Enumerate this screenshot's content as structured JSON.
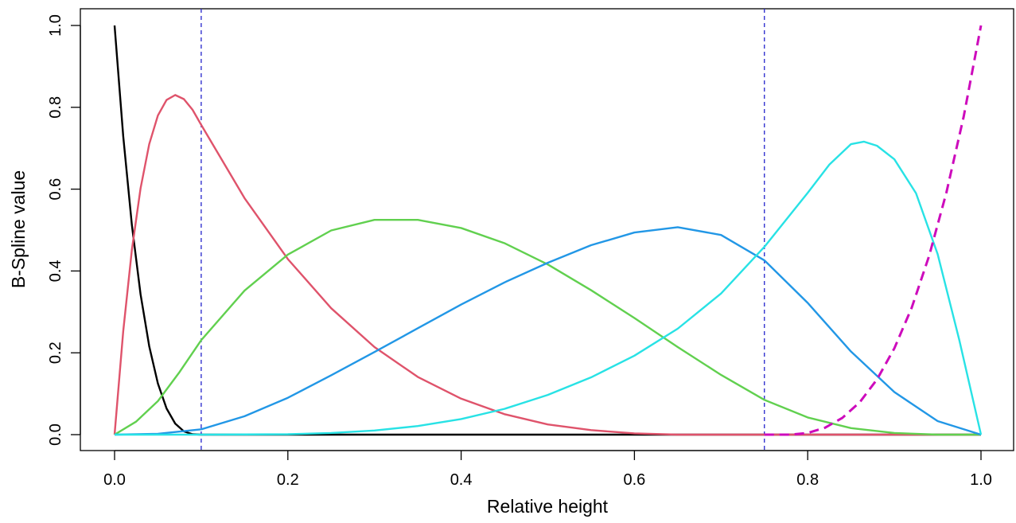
{
  "chart_data": {
    "type": "line",
    "title": "",
    "xlabel": "Relative height",
    "ylabel": "B-Spline value",
    "xlim": [
      0.0,
      1.0
    ],
    "ylim": [
      0.0,
      1.0
    ],
    "x_ticks": [
      "0.0",
      "0.2",
      "0.4",
      "0.6",
      "0.8",
      "1.0"
    ],
    "y_ticks": [
      "0.0",
      "0.2",
      "0.4",
      "0.6",
      "0.8",
      "1.0"
    ],
    "grid": false,
    "legend": "none",
    "knots": [
      0.1,
      0.75
    ],
    "knot_line_color": "#2222cc",
    "series": [
      {
        "color": "#000000",
        "dash": false,
        "x": [
          0,
          0.01,
          0.02,
          0.03,
          0.04,
          0.05,
          0.06,
          0.07,
          0.08,
          0.09,
          0.1,
          1.0
        ],
        "y": [
          1.0,
          0.729,
          0.512,
          0.343,
          0.216,
          0.125,
          0.064,
          0.027,
          0.008,
          0.001,
          0.0,
          0.0
        ]
      },
      {
        "color": "#df536b",
        "dash": false,
        "x": [
          0,
          0.01,
          0.02,
          0.03,
          0.04,
          0.05,
          0.06,
          0.07,
          0.08,
          0.09,
          0.1,
          0.15,
          0.2,
          0.25,
          0.3,
          0.35,
          0.4,
          0.45,
          0.5,
          0.55,
          0.6,
          0.65,
          0.7,
          0.75,
          1.0
        ],
        "y": [
          0.0,
          0.253,
          0.452,
          0.602,
          0.71,
          0.78,
          0.818,
          0.83,
          0.82,
          0.794,
          0.757,
          0.578,
          0.429,
          0.309,
          0.214,
          0.141,
          0.088,
          0.05,
          0.025,
          0.011,
          0.003,
          0.0,
          0.0,
          0.0,
          0.0
        ]
      },
      {
        "color": "#61d04f",
        "dash": false,
        "x": [
          0,
          0.025,
          0.05,
          0.075,
          0.1,
          0.15,
          0.2,
          0.25,
          0.3,
          0.35,
          0.4,
          0.45,
          0.5,
          0.55,
          0.6,
          0.65,
          0.7,
          0.75,
          0.8,
          0.85,
          0.9,
          0.95,
          1.0
        ],
        "y": [
          0.0,
          0.032,
          0.082,
          0.153,
          0.231,
          0.352,
          0.44,
          0.499,
          0.525,
          0.525,
          0.505,
          0.468,
          0.416,
          0.353,
          0.285,
          0.214,
          0.146,
          0.085,
          0.042,
          0.016,
          0.004,
          0.0,
          0.0
        ]
      },
      {
        "color": "#2297e6",
        "dash": false,
        "x": [
          0,
          0.05,
          0.1,
          0.15,
          0.2,
          0.25,
          0.3,
          0.35,
          0.4,
          0.45,
          0.5,
          0.55,
          0.6,
          0.65,
          0.7,
          0.75,
          0.8,
          0.85,
          0.9,
          0.95,
          1.0
        ],
        "y": [
          0.0,
          0.002,
          0.013,
          0.045,
          0.09,
          0.145,
          0.202,
          0.26,
          0.318,
          0.372,
          0.42,
          0.463,
          0.494,
          0.507,
          0.488,
          0.426,
          0.322,
          0.203,
          0.104,
          0.033,
          0.0
        ]
      },
      {
        "color": "#28e2e5",
        "dash": false,
        "x": [
          0,
          0.1,
          0.2,
          0.25,
          0.3,
          0.35,
          0.4,
          0.45,
          0.5,
          0.55,
          0.6,
          0.65,
          0.7,
          0.75,
          0.8,
          0.825,
          0.85,
          0.865,
          0.88,
          0.9,
          0.925,
          0.95,
          0.975,
          1.0
        ],
        "y": [
          0.0,
          0.0,
          0.001,
          0.004,
          0.01,
          0.021,
          0.038,
          0.063,
          0.097,
          0.14,
          0.193,
          0.259,
          0.345,
          0.459,
          0.591,
          0.66,
          0.71,
          0.716,
          0.706,
          0.673,
          0.59,
          0.441,
          0.231,
          0.0
        ]
      },
      {
        "color": "#cd0bbc",
        "dash": true,
        "x": [
          0.75,
          0.78,
          0.8,
          0.82,
          0.84,
          0.86,
          0.88,
          0.9,
          0.92,
          0.94,
          0.96,
          0.98,
          1.0
        ],
        "y": [
          0.0,
          0.0,
          0.004,
          0.017,
          0.041,
          0.079,
          0.135,
          0.211,
          0.31,
          0.436,
          0.591,
          0.777,
          1.0
        ]
      }
    ]
  }
}
